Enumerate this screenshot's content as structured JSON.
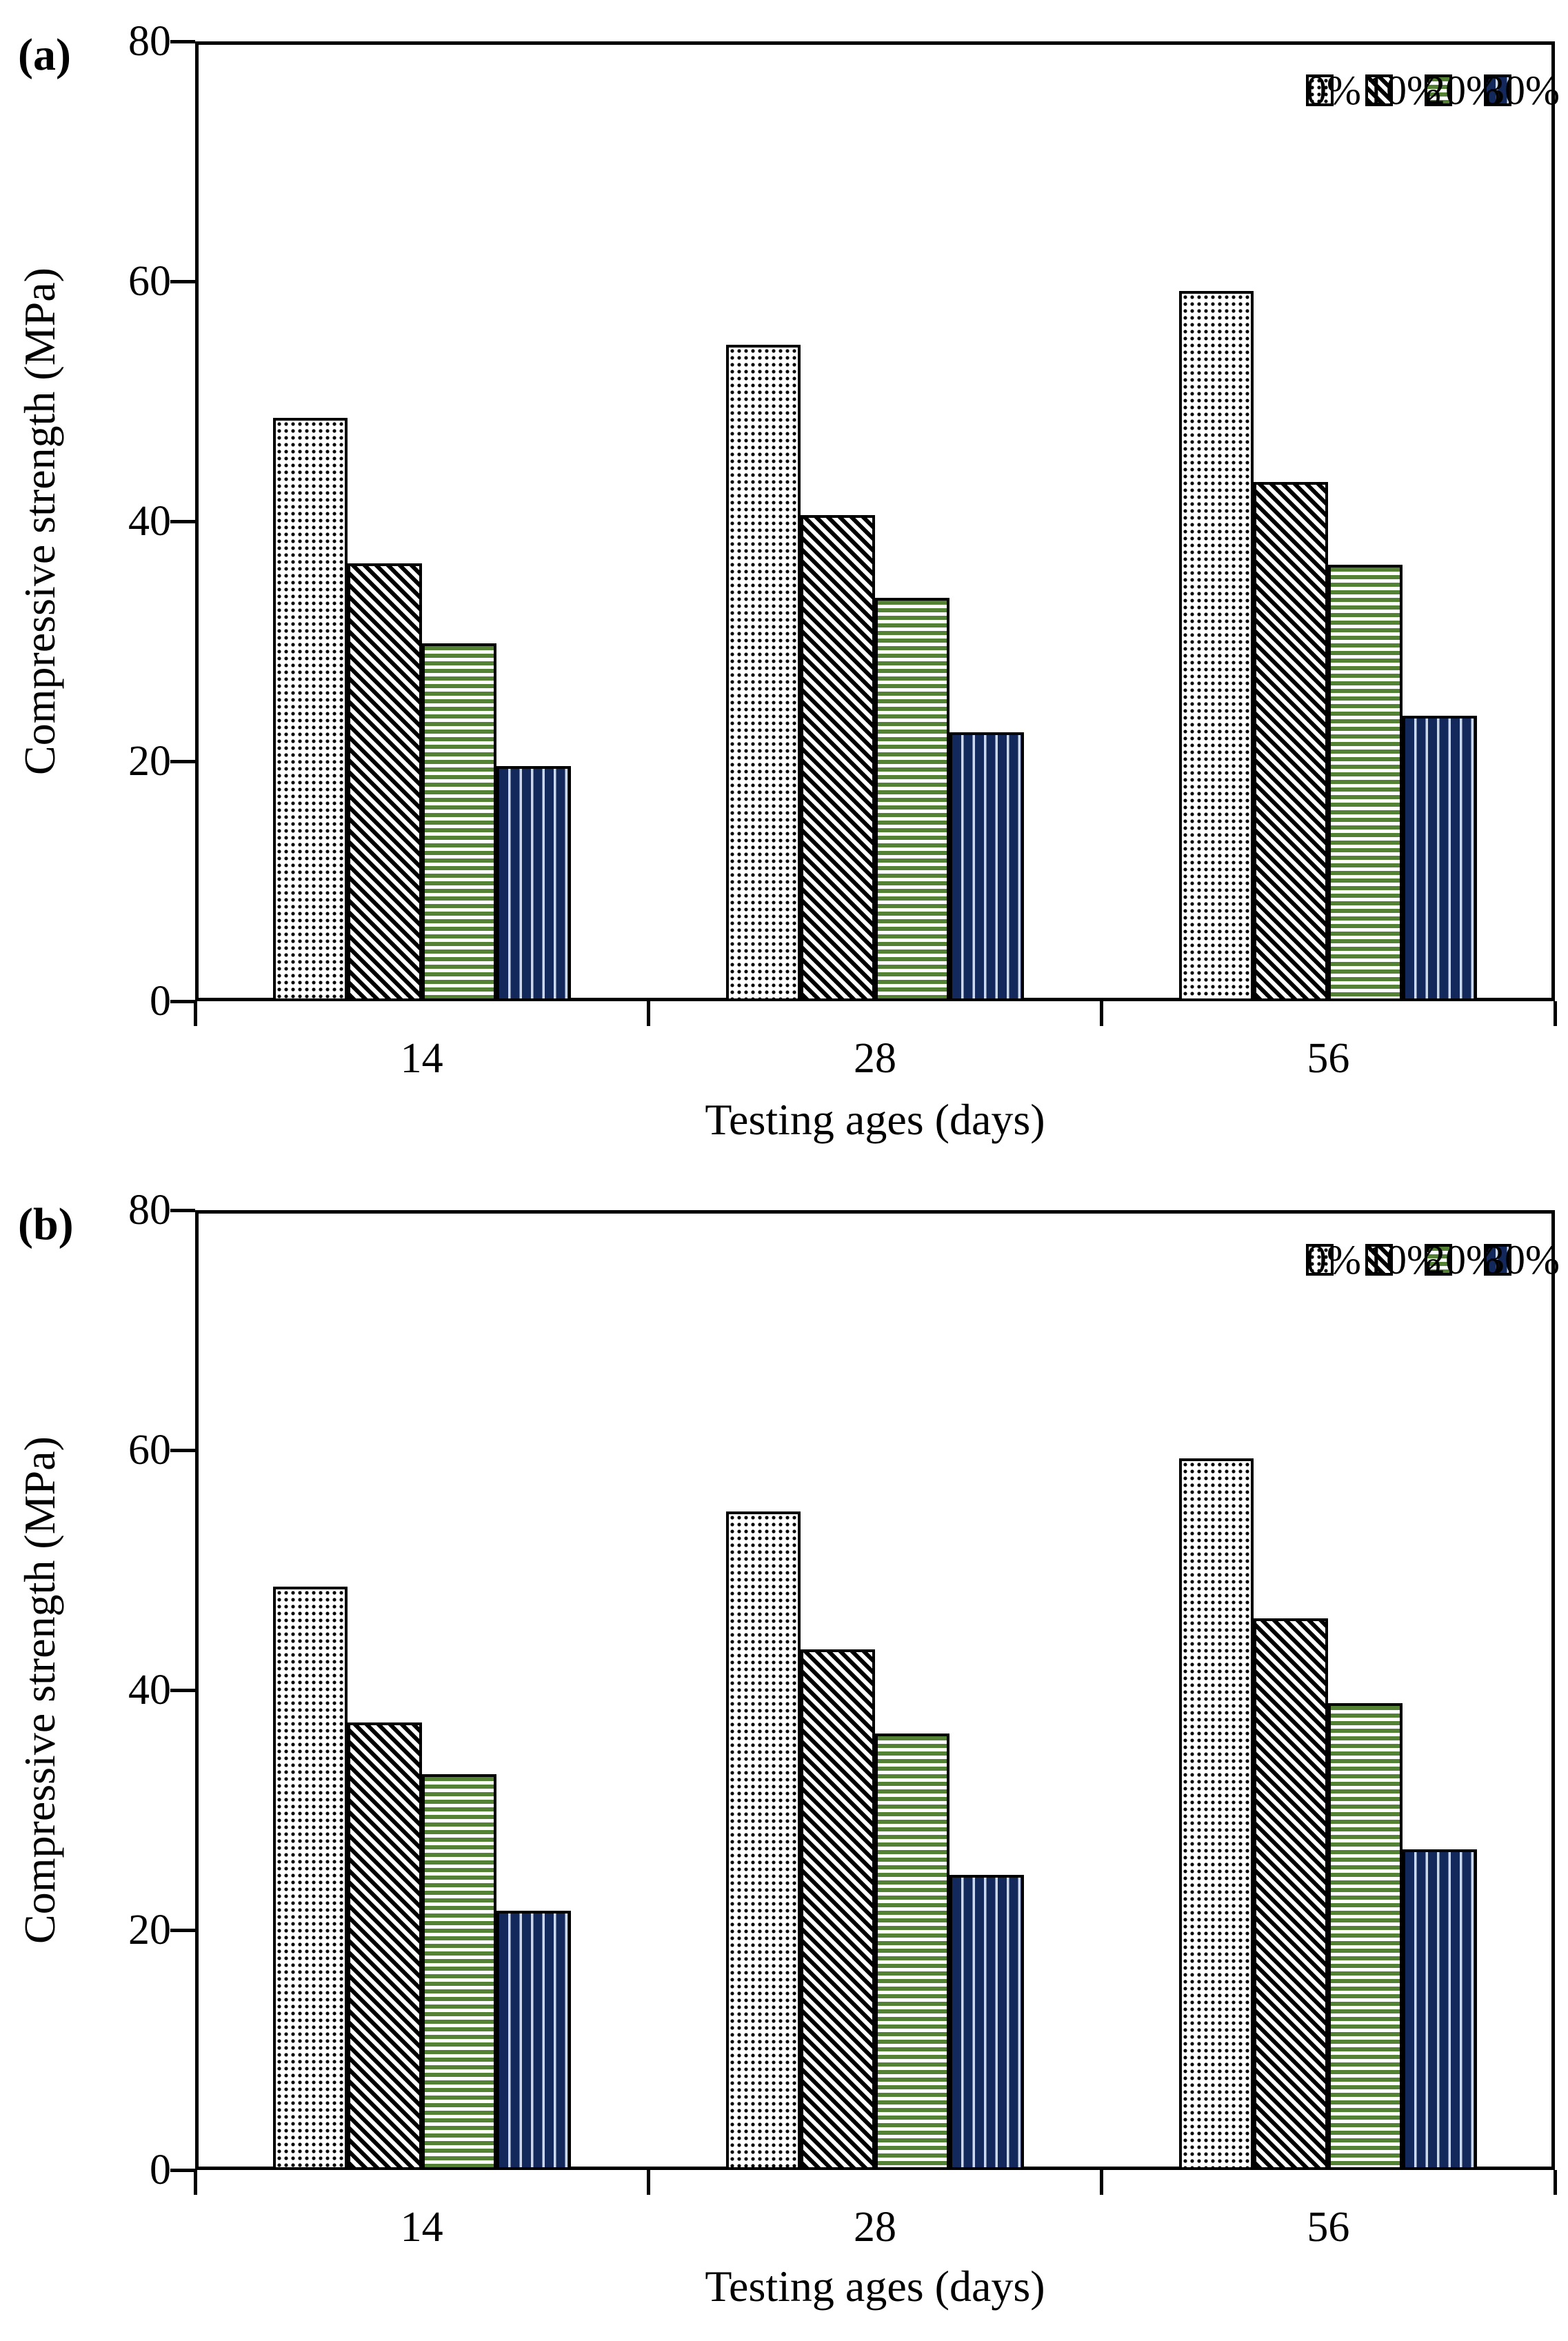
{
  "chart_data": [
    {
      "type": "bar",
      "panel_label": "(a)",
      "ylabel": "Compressive strength (MPa)",
      "xlabel": "Testing ages (days)",
      "ylim": [
        0,
        80
      ],
      "yticks": [
        0,
        20,
        40,
        60,
        80
      ],
      "categories": [
        "14",
        "28",
        "56"
      ],
      "grid": false,
      "legend_position": "top-right-inside",
      "legend_labels": [
        "0%",
        "10%",
        "20%",
        "30%"
      ],
      "series": [
        {
          "name": "0%",
          "pattern": "dots",
          "fill": "#ffffff",
          "pattern_color": "#000000",
          "values": [
            48.6,
            54.7,
            59.2
          ]
        },
        {
          "name": "10%",
          "pattern": "diagonal-hatch",
          "fill": "#ffffff",
          "pattern_color": "#000000",
          "values": [
            36.5,
            40.5,
            43.3
          ]
        },
        {
          "name": "20%",
          "pattern": "horizontal-stripes",
          "fill": "#ffffff",
          "pattern_color": "#548235",
          "values": [
            29.8,
            33.6,
            36.4
          ]
        },
        {
          "name": "30%",
          "pattern": "vertical-stripes",
          "fill": "#14295b",
          "pattern_color": "#ccd9ed",
          "values": [
            19.6,
            22.4,
            23.8
          ]
        }
      ]
    },
    {
      "type": "bar",
      "panel_label": "(b)",
      "ylabel": "Compressive strength (MPa)",
      "xlabel": "Testing ages (days)",
      "ylim": [
        0,
        80
      ],
      "yticks": [
        0,
        20,
        40,
        60,
        80
      ],
      "categories": [
        "14",
        "28",
        "56"
      ],
      "grid": false,
      "legend_position": "top-right-inside",
      "legend_labels": [
        "0%",
        "10%",
        "20%",
        "30%"
      ],
      "series": [
        {
          "name": "0%",
          "pattern": "dots",
          "fill": "#ffffff",
          "pattern_color": "#000000",
          "values": [
            48.6,
            54.9,
            59.3
          ]
        },
        {
          "name": "10%",
          "pattern": "diagonal-hatch",
          "fill": "#ffffff",
          "pattern_color": "#000000",
          "values": [
            37.3,
            43.4,
            46.0
          ]
        },
        {
          "name": "20%",
          "pattern": "horizontal-stripes",
          "fill": "#ffffff",
          "pattern_color": "#548235",
          "values": [
            33.0,
            36.4,
            38.9
          ]
        },
        {
          "name": "30%",
          "pattern": "vertical-stripes",
          "fill": "#14295b",
          "pattern_color": "#ccd9ed",
          "values": [
            21.6,
            24.6,
            26.7
          ]
        }
      ]
    }
  ],
  "style": {
    "background": "#ffffff",
    "axis_color": "#000000",
    "green": "#548235",
    "navy": "#14295b",
    "navy_stripe": "#ccd9ed"
  }
}
